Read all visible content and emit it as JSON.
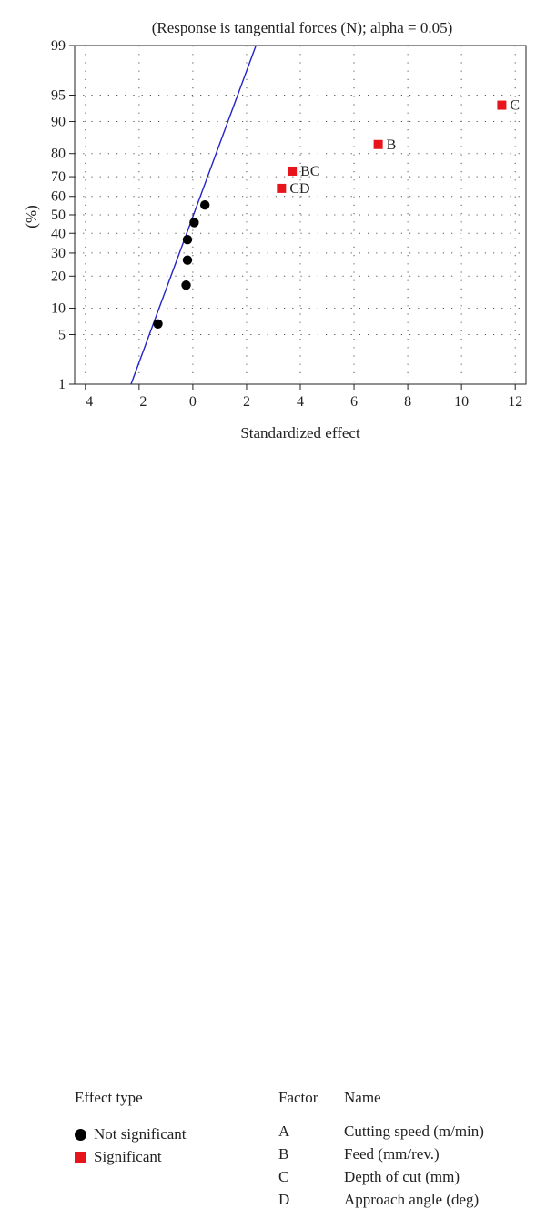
{
  "chart_data": {
    "type": "scatter",
    "title": "(Response is tangential forces (N); alpha = 0.05)",
    "xlabel": "Standardized effect",
    "ylabel": "(%)",
    "xlim": [
      -4.4,
      12.4
    ],
    "xticks": [
      -4,
      -2,
      0,
      2,
      4,
      6,
      8,
      10,
      12
    ],
    "xtick_labels": [
      "−4",
      "−2",
      "0",
      "2",
      "4",
      "6",
      "8",
      "10",
      "12"
    ],
    "yscale": "normal-probability",
    "yticks": [
      1,
      5,
      10,
      20,
      30,
      40,
      50,
      60,
      70,
      80,
      90,
      95,
      99
    ],
    "yticks_labels": [
      "1",
      "5",
      "10",
      "20",
      "30",
      "40",
      "50",
      "60",
      "70",
      "80",
      "90",
      "95",
      "99"
    ],
    "ylim": [
      1,
      99
    ],
    "grid": "dotted",
    "fit_line": {
      "x": [
        -2.3,
        2.35
      ],
      "y": [
        1,
        99
      ],
      "color": "#2424c8"
    },
    "series": [
      {
        "name": "Not significant",
        "marker": "circle",
        "color": "#000000",
        "points": [
          {
            "x": -1.3,
            "y": 6.7
          },
          {
            "x": -0.25,
            "y": 16.7
          },
          {
            "x": -0.2,
            "y": 26.7
          },
          {
            "x": -0.2,
            "y": 36.7
          },
          {
            "x": 0.05,
            "y": 45.8
          },
          {
            "x": 0.45,
            "y": 55.4
          }
        ]
      },
      {
        "name": "Significant",
        "marker": "square",
        "color": "#e8141c",
        "points": [
          {
            "x": 3.3,
            "y": 64.2,
            "label": "CD"
          },
          {
            "x": 3.7,
            "y": 72.6,
            "label": "BC"
          },
          {
            "x": 6.9,
            "y": 83.3,
            "label": "B"
          },
          {
            "x": 11.5,
            "y": 93.4,
            "label": "C"
          }
        ]
      }
    ]
  },
  "legend": {
    "effect_type_header": "Effect type",
    "not_significant_label": "Not significant",
    "significant_label": "Significant",
    "factor_header": "Factor",
    "name_header": "Name",
    "factors": [
      {
        "factor": "A",
        "name": "Cutting speed (m/min)"
      },
      {
        "factor": "B",
        "name": "Feed (mm/rev.)"
      },
      {
        "factor": "C",
        "name": "Depth of cut (mm)"
      },
      {
        "factor": "D",
        "name": "Approach angle (deg)"
      }
    ]
  }
}
